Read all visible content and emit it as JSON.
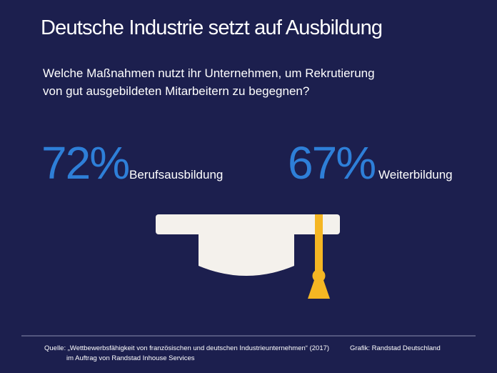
{
  "header": {
    "title": "Deutsche Industrie setzt auf Ausbildung"
  },
  "question": {
    "lines": [
      "Welche Maßnahmen nutzt ihr Unternehmen, um Rekrutierung",
      "von gut ausgebildeten Mitarbeitern zu begegnen?"
    ]
  },
  "stats": [
    {
      "value": "72%",
      "label": "Berufsausbildung"
    },
    {
      "value": "67%",
      "label": "Weiterbildung"
    }
  ],
  "footer": {
    "source_lines": [
      "Quelle: „Wettbewerbsfähigkeit von französischen und deutschen Industrieunternehmen“ (2017)",
      "im Auftrag von Randstad Inhouse Services"
    ],
    "credit": "Grafik: Randstad Deutschland"
  }
}
